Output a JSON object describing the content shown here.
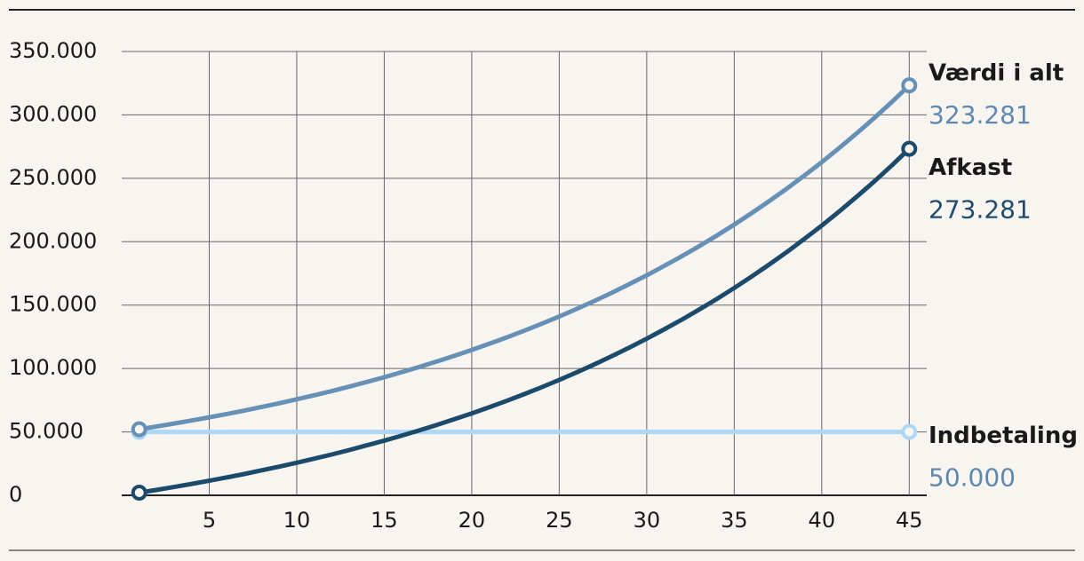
{
  "chart_data": {
    "type": "line",
    "x": [
      1,
      2,
      3,
      4,
      5,
      6,
      7,
      8,
      9,
      10,
      11,
      12,
      13,
      14,
      15,
      16,
      17,
      18,
      19,
      20,
      21,
      22,
      23,
      24,
      25,
      26,
      27,
      28,
      29,
      30,
      31,
      32,
      33,
      34,
      35,
      36,
      37,
      38,
      39,
      40,
      41,
      42,
      43,
      44,
      45
    ],
    "series": [
      {
        "name": "Værdi i alt",
        "color": "#6690b5",
        "label_color": "#5e88ad",
        "values": [
          52100,
          54300,
          56600,
          59000,
          61500,
          64100,
          66800,
          69700,
          72600,
          75700,
          78900,
          82200,
          85700,
          89400,
          93100,
          97100,
          101200,
          105500,
          110000,
          114600,
          119500,
          124500,
          129800,
          135300,
          141000,
          147000,
          153200,
          159700,
          166500,
          173500,
          180900,
          188500,
          196500,
          204800,
          213500,
          222600,
          232000,
          241800,
          252100,
          262700,
          273900,
          285500,
          297500,
          310100,
          323281
        ],
        "value_labels": [
          null,
          null,
          null,
          null,
          null,
          null,
          null,
          null,
          null,
          null,
          null,
          null,
          null,
          null,
          null,
          null,
          null,
          null,
          null,
          null,
          null,
          null,
          null,
          null,
          null,
          null,
          null,
          null,
          null,
          null,
          null,
          null,
          null,
          null,
          null,
          null,
          null,
          null,
          null,
          null,
          null,
          null,
          null,
          null,
          "323.281"
        ]
      },
      {
        "name": "Afkast",
        "color": "#1b4a6b",
        "label_color": "#1f4c6e",
        "values": [
          2100,
          4300,
          6600,
          9000,
          11500,
          14100,
          16800,
          19700,
          22600,
          25700,
          28900,
          32200,
          35700,
          39400,
          43100,
          47100,
          51200,
          55500,
          60000,
          64600,
          69500,
          74500,
          79800,
          85300,
          91000,
          97000,
          103200,
          109700,
          116500,
          123500,
          130900,
          138500,
          146500,
          154800,
          163500,
          172600,
          182000,
          191800,
          202100,
          212700,
          223900,
          235500,
          247500,
          260100,
          273281
        ],
        "value_labels": [
          null,
          null,
          null,
          null,
          null,
          null,
          null,
          null,
          null,
          null,
          null,
          null,
          null,
          null,
          null,
          null,
          null,
          null,
          null,
          null,
          null,
          null,
          null,
          null,
          null,
          null,
          null,
          null,
          null,
          null,
          null,
          null,
          null,
          null,
          null,
          null,
          null,
          null,
          null,
          null,
          null,
          null,
          null,
          null,
          "273.281"
        ]
      },
      {
        "name": "Indbetaling",
        "color": "#aed6f5",
        "label_color": "#5e88ad",
        "values": [
          50000,
          50000,
          50000,
          50000,
          50000,
          50000,
          50000,
          50000,
          50000,
          50000,
          50000,
          50000,
          50000,
          50000,
          50000,
          50000,
          50000,
          50000,
          50000,
          50000,
          50000,
          50000,
          50000,
          50000,
          50000,
          50000,
          50000,
          50000,
          50000,
          50000,
          50000,
          50000,
          50000,
          50000,
          50000,
          50000,
          50000,
          50000,
          50000,
          50000,
          50000,
          50000,
          50000,
          50000,
          50000
        ],
        "value_labels": [
          null,
          null,
          null,
          null,
          null,
          null,
          null,
          null,
          null,
          null,
          null,
          null,
          null,
          null,
          null,
          null,
          null,
          null,
          null,
          null,
          null,
          null,
          null,
          null,
          null,
          null,
          null,
          null,
          null,
          null,
          null,
          null,
          null,
          null,
          null,
          null,
          null,
          null,
          null,
          null,
          null,
          null,
          null,
          null,
          "50.000"
        ]
      }
    ],
    "xlim": [
      0,
      46
    ],
    "xticks": [
      5,
      10,
      15,
      20,
      25,
      30,
      35,
      40,
      45
    ],
    "ylim": [
      0,
      350000
    ],
    "yticks": [
      0,
      {
        "value": 50000,
        "label": "50.000"
      },
      {
        "value": 100000,
        "label": "100.000"
      },
      {
        "value": 150000,
        "label": "150.000"
      },
      {
        "value": 200000,
        "label": "200.000"
      },
      {
        "value": 250000,
        "label": "250.000"
      },
      {
        "value": 300000,
        "label": "300.000"
      },
      {
        "value": 350000,
        "label": "350.000"
      }
    ],
    "grid": true
  }
}
